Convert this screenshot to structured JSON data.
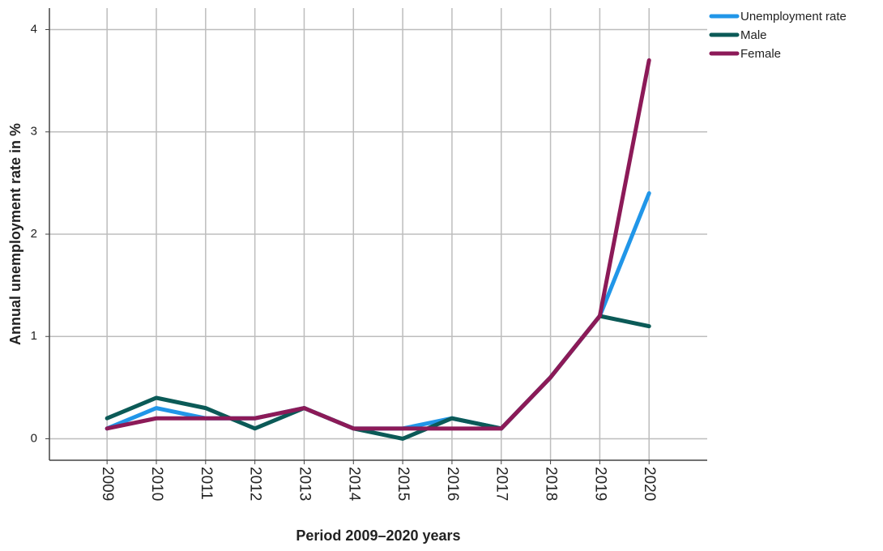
{
  "chart_data": {
    "type": "line",
    "x_label": "Period 2009–2020 years",
    "y_label": "Annual unemployment rate in %",
    "x": [
      2009,
      2010,
      2011,
      2012,
      2013,
      2014,
      2015,
      2016,
      2017,
      2018,
      2019,
      2020
    ],
    "xlim": [
      2007.83,
      2021.18
    ],
    "xticks": [
      2009,
      2010,
      2011,
      2012,
      2013,
      2014,
      2015,
      2016,
      2017,
      2018,
      2019,
      2020
    ],
    "ylim": [
      -0.21,
      4.21
    ],
    "yticks": [
      0,
      1,
      2,
      3,
      4
    ],
    "grid": true,
    "legend": "right",
    "series": [
      {
        "name": "Unemployment rate",
        "color": "#2196e8",
        "values": [
          0.1,
          0.3,
          0.2,
          0.2,
          0.3,
          0.1,
          0.1,
          0.2,
          0.1,
          0.6,
          1.2,
          2.4
        ]
      },
      {
        "name": "Male",
        "color": "#0b5a57",
        "values": [
          0.2,
          0.4,
          0.3,
          0.1,
          0.3,
          0.1,
          0.0,
          0.2,
          0.1,
          0.6,
          1.2,
          1.1
        ]
      },
      {
        "name": "Female",
        "color": "#8c1a58",
        "values": [
          0.1,
          0.2,
          0.2,
          0.2,
          0.3,
          0.1,
          0.1,
          0.1,
          0.1,
          0.6,
          1.2,
          3.7
        ]
      }
    ]
  }
}
